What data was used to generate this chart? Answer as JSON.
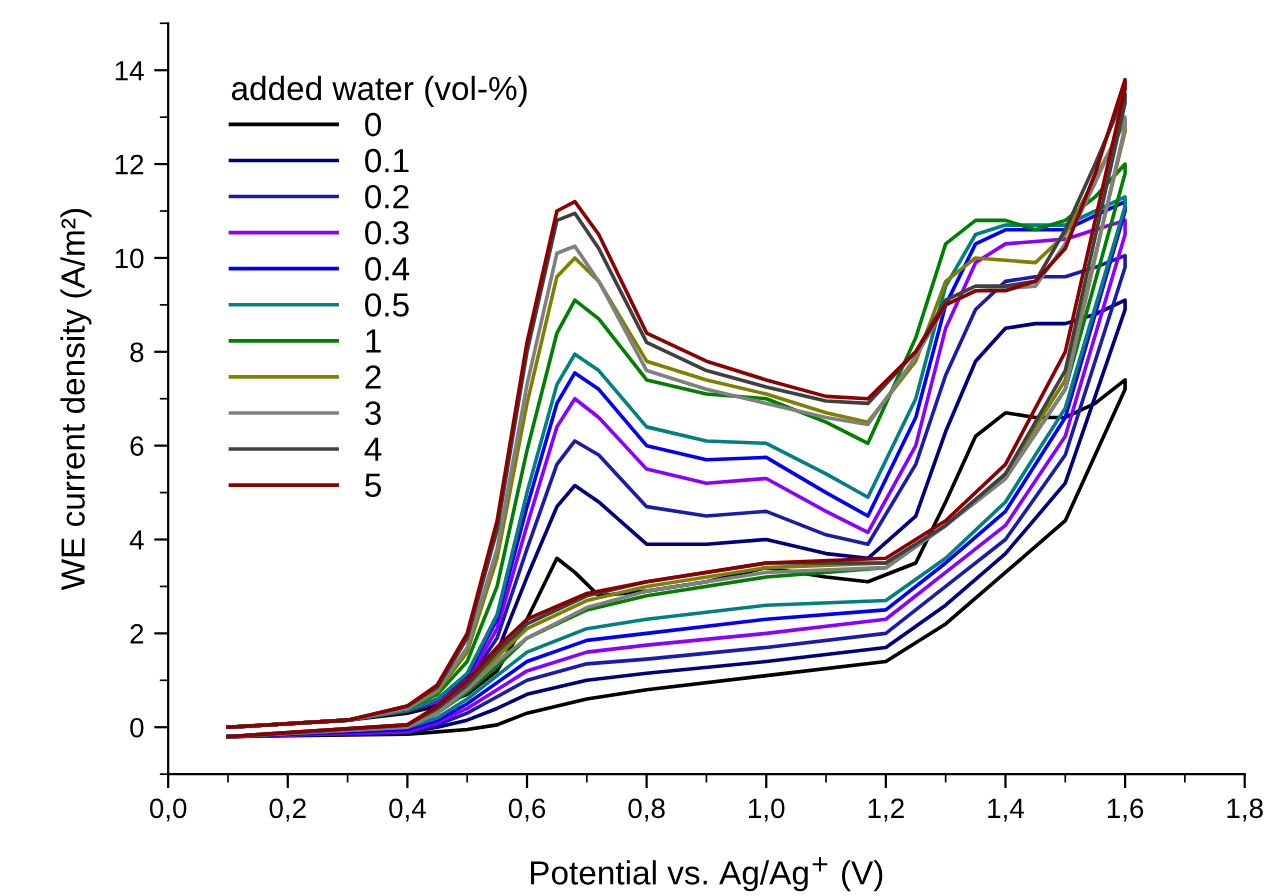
{
  "chart_data": {
    "type": "line",
    "xlabel": "Potential vs. Ag/Ag$^{+}$ (V)",
    "ylabel": "WE current density (A/m²)",
    "legend_title": "added water (vol-%)",
    "legend": "top left",
    "grid": false,
    "marker": "none",
    "line_style": "solid",
    "xlim": [
      0.0,
      1.8
    ],
    "ylim": [
      -1,
      15
    ],
    "xticks": [
      {
        "value": 0.0,
        "label": "0,0"
      },
      {
        "value": 0.2,
        "label": "0,2"
      },
      {
        "value": 0.4,
        "label": "0,4"
      },
      {
        "value": 0.6,
        "label": "0,6"
      },
      {
        "value": 0.8,
        "label": "0,8"
      },
      {
        "value": 1.0,
        "label": "1,0"
      },
      {
        "value": 1.2,
        "label": "1,2"
      },
      {
        "value": 1.4,
        "label": "1,4"
      },
      {
        "value": 1.6,
        "label": "1,6"
      },
      {
        "value": 1.8,
        "label": "1,8"
      }
    ],
    "yticks": [
      0,
      2,
      4,
      6,
      8,
      10,
      12,
      14
    ],
    "x": [
      0.1,
      0.3,
      0.4,
      0.45,
      0.5,
      0.55,
      0.6,
      0.65,
      0.68,
      0.72,
      0.8,
      0.9,
      1.0,
      1.1,
      1.17,
      1.25,
      1.3,
      1.35,
      1.4,
      1.45,
      1.5,
      1.55,
      1.6,
      1.6,
      1.5,
      1.4,
      1.3,
      1.2,
      1.0,
      0.8,
      0.7,
      0.6,
      0.55,
      0.5,
      0.45,
      0.4,
      0.1
    ],
    "series": [
      {
        "name": "0",
        "color": "#000000",
        "values": [
          0.0,
          0.15,
          0.3,
          0.45,
          0.7,
          1.2,
          2.3,
          3.6,
          3.3,
          2.8,
          2.9,
          3.1,
          3.4,
          3.2,
          3.1,
          3.5,
          4.8,
          6.2,
          6.7,
          6.6,
          6.6,
          6.9,
          7.4,
          7.2,
          4.4,
          3.3,
          2.2,
          1.4,
          1.1,
          0.8,
          0.6,
          0.3,
          0.05,
          -0.05,
          -0.1,
          -0.15,
          -0.2
        ]
      },
      {
        "name": "0.1",
        "color": "#00007f",
        "values": [
          0.0,
          0.15,
          0.35,
          0.5,
          0.85,
          1.6,
          3.2,
          4.7,
          5.15,
          4.8,
          3.9,
          3.9,
          4.0,
          3.7,
          3.6,
          4.5,
          6.3,
          7.8,
          8.5,
          8.6,
          8.6,
          8.8,
          9.1,
          8.9,
          5.2,
          3.7,
          2.6,
          1.7,
          1.4,
          1.15,
          1.0,
          0.7,
          0.4,
          0.15,
          0.0,
          -0.1,
          -0.2
        ]
      },
      {
        "name": "0.2",
        "color": "#1c1caa",
        "values": [
          0.0,
          0.15,
          0.35,
          0.55,
          0.95,
          1.9,
          3.8,
          5.6,
          6.1,
          5.8,
          4.7,
          4.5,
          4.6,
          4.1,
          3.9,
          5.6,
          7.5,
          8.9,
          9.5,
          9.6,
          9.6,
          9.8,
          10.05,
          9.8,
          5.8,
          4.0,
          3.0,
          2.0,
          1.7,
          1.45,
          1.35,
          1.0,
          0.65,
          0.3,
          0.05,
          -0.1,
          -0.2
        ]
      },
      {
        "name": "0.3",
        "color": "#8b00ff",
        "values": [
          0.0,
          0.15,
          0.35,
          0.55,
          1.0,
          2.1,
          4.3,
          6.4,
          7.0,
          6.6,
          5.5,
          5.2,
          5.3,
          4.6,
          4.15,
          6.0,
          8.5,
          9.9,
          10.3,
          10.35,
          10.4,
          10.6,
          10.8,
          10.5,
          6.2,
          4.3,
          3.3,
          2.3,
          2.0,
          1.75,
          1.6,
          1.2,
          0.8,
          0.4,
          0.1,
          -0.1,
          -0.2
        ]
      },
      {
        "name": "0.4",
        "color": "#0000ff",
        "values": [
          null,
          null,
          0.35,
          0.6,
          1.1,
          2.3,
          4.7,
          6.9,
          7.55,
          7.2,
          6.0,
          5.7,
          5.75,
          5.0,
          4.5,
          6.6,
          9.0,
          10.3,
          10.6,
          10.6,
          10.6,
          10.9,
          11.2,
          11.0,
          6.6,
          4.6,
          3.5,
          2.5,
          2.3,
          2.0,
          1.85,
          1.4,
          0.95,
          0.5,
          0.15,
          -0.05,
          -0.2
        ]
      },
      {
        "name": "0.5",
        "color": "#008080",
        "values": [
          0.0,
          0.15,
          0.35,
          0.6,
          1.15,
          2.4,
          5.0,
          7.3,
          7.95,
          7.6,
          6.4,
          6.1,
          6.05,
          5.4,
          4.9,
          7.0,
          9.4,
          10.5,
          10.7,
          10.7,
          10.7,
          11.0,
          11.3,
          11.1,
          6.8,
          4.8,
          3.6,
          2.7,
          2.6,
          2.3,
          2.1,
          1.6,
          1.1,
          0.6,
          0.2,
          0.0,
          -0.2
        ]
      },
      {
        "name": "1",
        "color": "#008000",
        "values": [
          0.0,
          0.15,
          0.4,
          0.7,
          1.4,
          3.0,
          5.9,
          8.4,
          9.1,
          8.7,
          7.4,
          7.1,
          7.0,
          6.5,
          6.05,
          8.3,
          10.3,
          10.8,
          10.8,
          10.6,
          10.8,
          11.3,
          12.0,
          11.8,
          7.2,
          5.3,
          4.3,
          3.4,
          3.2,
          2.8,
          2.5,
          1.9,
          1.3,
          0.75,
          0.3,
          0.0,
          -0.2
        ]
      },
      {
        "name": "2",
        "color": "#808000",
        "values": [
          0.0,
          0.15,
          0.4,
          0.75,
          1.6,
          3.6,
          6.9,
          9.6,
          10.0,
          9.5,
          7.8,
          7.4,
          7.1,
          6.7,
          6.5,
          7.8,
          9.5,
          10.0,
          9.95,
          9.9,
          10.5,
          11.7,
          12.9,
          12.7,
          7.4,
          5.4,
          4.3,
          3.5,
          3.4,
          3.0,
          2.7,
          2.1,
          1.5,
          0.85,
          0.35,
          0.05,
          -0.2
        ]
      },
      {
        "name": "3",
        "color": "#808080",
        "values": [
          0.0,
          0.15,
          0.4,
          0.8,
          1.7,
          3.8,
          7.3,
          10.1,
          10.25,
          9.5,
          7.6,
          7.2,
          6.9,
          6.6,
          6.45,
          7.9,
          9.0,
          9.3,
          9.35,
          9.4,
          10.3,
          11.6,
          13.0,
          12.8,
          7.2,
          5.3,
          4.3,
          3.4,
          3.3,
          2.9,
          2.55,
          1.9,
          1.4,
          0.8,
          0.3,
          0.0,
          -0.2
        ]
      },
      {
        "name": "4",
        "color": "#404040",
        "values": [
          0.0,
          0.15,
          0.45,
          0.85,
          1.9,
          4.2,
          8.0,
          10.8,
          10.95,
          10.2,
          8.2,
          7.6,
          7.25,
          6.95,
          6.9,
          8.0,
          9.1,
          9.4,
          9.4,
          9.5,
          10.6,
          12.0,
          13.5,
          13.3,
          7.6,
          5.4,
          4.3,
          3.5,
          3.5,
          3.1,
          2.8,
          2.2,
          1.6,
          0.9,
          0.4,
          0.05,
          -0.2
        ]
      },
      {
        "name": "5",
        "color": "#8b0000",
        "values": [
          0.0,
          0.15,
          0.45,
          0.9,
          2.0,
          4.4,
          8.2,
          11.0,
          11.2,
          10.5,
          8.4,
          7.8,
          7.4,
          7.05,
          7.0,
          8.0,
          9.0,
          9.3,
          9.3,
          9.5,
          10.2,
          11.8,
          13.8,
          13.6,
          8.0,
          5.6,
          4.4,
          3.6,
          3.5,
          3.1,
          2.85,
          2.3,
          1.7,
          1.0,
          0.45,
          0.05,
          -0.2
        ]
      }
    ]
  }
}
